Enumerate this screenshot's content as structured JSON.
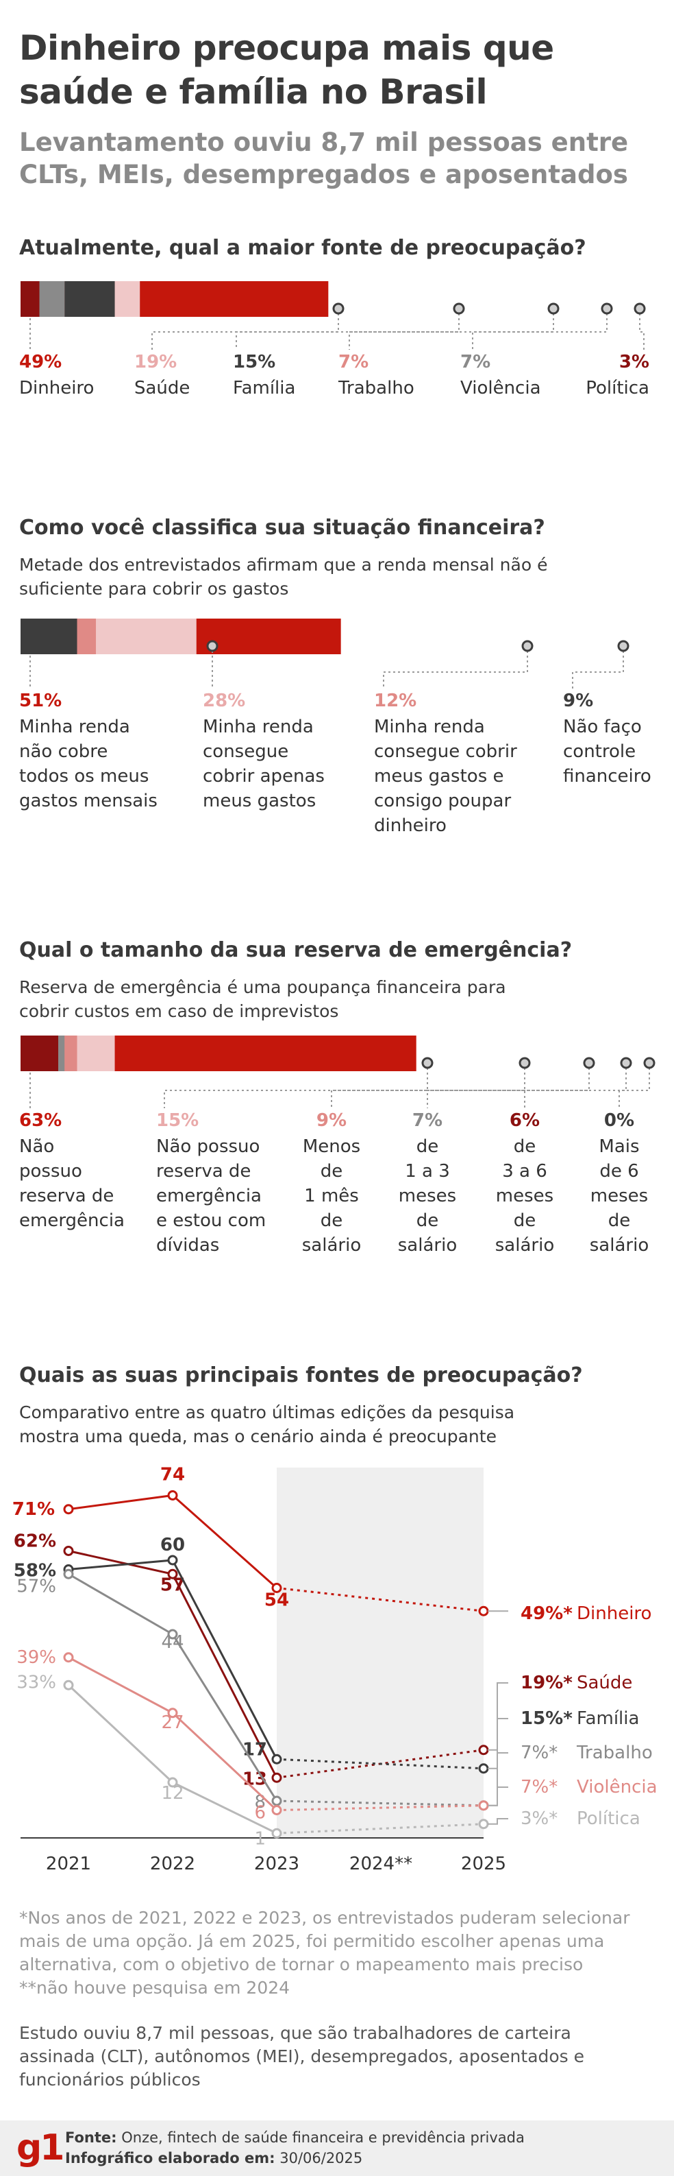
{
  "header": {
    "title": "Dinheiro preocupa mais que saúde e família no Brasil",
    "subtitle": "Levantamento ouviu 8,7 mil pessoas entre CLTs, MEIs, desempregados e aposentados"
  },
  "colors": {
    "red": "#c4170c",
    "pink": "#f0c8c8",
    "dark": "#3d3d3d",
    "salmon": "#e08a86",
    "grey": "#8a8a8a",
    "darkred": "#8b1110",
    "lightgrey": "#b8b8b8"
  },
  "chart_data": [
    {
      "type": "stacked-bar",
      "title": "Atualmente, qual a maior fonte de preocupação?",
      "segments": [
        {
          "label": "Dinheiro",
          "pct_label": "49%",
          "value": 49,
          "color": "#c4170c",
          "label_color": "#c4170c"
        },
        {
          "label": "Saúde",
          "pct_label": "19%",
          "value": 19,
          "color": "#f0c8c8",
          "label_color": "#e9aaaa"
        },
        {
          "label": "Família",
          "pct_label": "15%",
          "value": 15,
          "color": "#3d3d3d",
          "label_color": "#3d3d3d"
        },
        {
          "label": "Trabalho",
          "pct_label": "7%",
          "value": 7,
          "color": "#e08a86",
          "label_color": "#e08a86"
        },
        {
          "label": "Violência",
          "pct_label": "7%",
          "value": 7,
          "color": "#8a8a8a",
          "label_color": "#8a8a8a"
        },
        {
          "label": "Política",
          "pct_label": "3%",
          "value": 3,
          "color": "#8b1110",
          "label_color": "#8b1110"
        }
      ]
    },
    {
      "type": "stacked-bar",
      "title": "Como você classifica sua situação financeira?",
      "subtitle": "Metade dos entrevistados afirmam que a renda mensal não é suficiente para cobrir os gastos",
      "segments": [
        {
          "label": "Minha renda não cobre todos os meus gastos mensais",
          "pct_label": "51%",
          "value": 51,
          "color": "#c4170c",
          "label_color": "#c4170c"
        },
        {
          "label": "Minha renda consegue cobrir apenas meus gastos",
          "pct_label": "28%",
          "value": 28,
          "color": "#f0c8c8",
          "label_color": "#e9aaaa"
        },
        {
          "label": "Minha renda consegue cobrir meus gastos e consigo poupar dinheiro",
          "pct_label": "12%",
          "value": 12,
          "color": "#e08a86",
          "label_color": "#e08a86"
        },
        {
          "label": "Não faço controle financeiro",
          "pct_label": "9%",
          "value": 9,
          "color": "#3d3d3d",
          "label_color": "#3d3d3d"
        }
      ]
    },
    {
      "type": "stacked-bar",
      "title": "Qual o tamanho da sua reserva de emergência?",
      "subtitle": "Reserva de emergência é uma poupança financeira para cobrir custos em caso de imprevistos",
      "segments": [
        {
          "label": "Não possuo reserva de emergência",
          "pct_label": "63%",
          "value": 63,
          "color": "#c4170c",
          "label_color": "#c4170c"
        },
        {
          "label": "Não possuo reserva de emergência e estou com dívidas",
          "pct_label": "15%",
          "value": 15,
          "color": "#f0c8c8",
          "label_color": "#e9aaaa"
        },
        {
          "label": "Menos de 1 mês de salário",
          "pct_label": "9%",
          "value": 9,
          "color": "#e08a86",
          "label_color": "#e08a86"
        },
        {
          "label": "de 1 a 3 meses de salário",
          "pct_label": "7%",
          "value": 7,
          "color": "#8a8a8a",
          "label_color": "#8a8a8a"
        },
        {
          "label": "de 3 a 6 meses de salário",
          "pct_label": "6%",
          "value": 6,
          "color": "#8b1110",
          "label_color": "#8b1110"
        },
        {
          "label": "Mais de 6 meses de salário",
          "pct_label": "0%",
          "value": 0,
          "color": "#3d3d3d",
          "label_color": "#3d3d3d"
        }
      ]
    },
    {
      "type": "line",
      "title": "Quais as suas principais fontes de preocupação?",
      "subtitle": "Comparativo entre as quatro últimas edições da pesquisa mostra uma queda, mas o cenário ainda é preocupante",
      "x": [
        "2021",
        "2022",
        "2023",
        "2024**",
        "2025"
      ],
      "ylim": [
        0,
        80
      ],
      "series": [
        {
          "name": "Dinheiro",
          "values": [
            71,
            74,
            54,
            null,
            49
          ],
          "color": "#c4170c",
          "end_label": "49%*"
        },
        {
          "name": "Saúde",
          "values": [
            62,
            57,
            13,
            null,
            19
          ],
          "color": "#8b1110",
          "end_label": "19%*"
        },
        {
          "name": "Família",
          "values": [
            58,
            60,
            17,
            null,
            15
          ],
          "color": "#3d3d3d",
          "end_label": "15%*"
        },
        {
          "name": "Trabalho",
          "values": [
            57,
            44,
            8,
            null,
            7
          ],
          "color": "#8a8a8a",
          "end_label": "7%*"
        },
        {
          "name": "Violência",
          "values": [
            39,
            27,
            6,
            null,
            7
          ],
          "color": "#e08a86",
          "end_label": "7%*"
        },
        {
          "name": "Política",
          "values": [
            33,
            12,
            1,
            null,
            3
          ],
          "color": "#b8b8b8",
          "end_label": "3%*"
        }
      ]
    }
  ],
  "notes": {
    "footnote": "*Nos anos de 2021, 2022 e 2023, os entrevistados puderam selecionar mais de uma opção. Já em 2025, foi permitido escolher apenas uma alternativa, com o objetivo de tornar o mapeamento mais preciso **não houve pesquisa  em 2024",
    "study": "Estudo ouviu 8,7 mil pessoas, que são trabalhadores de carteira assinada (CLT), autônomos (MEI), desempregados, aposentados e funcionários públicos"
  },
  "footer": {
    "logo": "g1",
    "source_label": "Fonte:",
    "source_text": "Onze, fintech de saúde financeira e previdência privada",
    "credit_label": "Infográfico elaborado em:",
    "credit_text": "30/06/2025"
  }
}
